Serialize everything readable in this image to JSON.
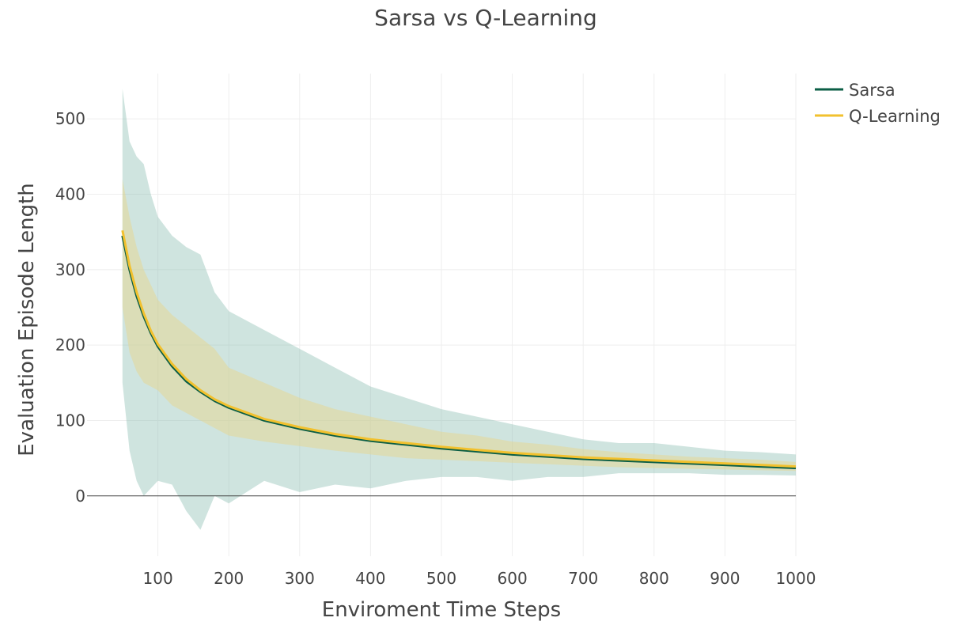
{
  "chart_data": {
    "type": "line",
    "title": "Sarsa vs Q-Learning",
    "xlabel": "Enviroment Time Steps",
    "ylabel": "Evaluation Episode Length",
    "xlim": [
      0,
      1000
    ],
    "ylim": [
      -80,
      560
    ],
    "x_ticks": [
      100,
      200,
      300,
      400,
      500,
      600,
      700,
      800,
      900,
      1000
    ],
    "y_ticks": [
      0,
      100,
      200,
      300,
      400,
      500
    ],
    "grid": true,
    "legend": "top-right",
    "x": [
      50,
      60,
      70,
      80,
      90,
      100,
      120,
      140,
      160,
      180,
      200,
      250,
      300,
      350,
      400,
      450,
      500,
      550,
      600,
      650,
      700,
      750,
      800,
      850,
      900,
      950,
      1000
    ],
    "series": [
      {
        "name": "Sarsa",
        "color": "#0b5e46",
        "values": [
          345,
          300,
          265,
          238,
          216,
          198,
          172,
          152,
          138,
          126,
          117,
          100,
          89,
          80,
          73,
          68,
          63,
          59,
          55,
          52,
          49,
          47,
          45,
          43,
          41,
          39,
          37
        ],
        "band_upper": [
          540,
          470,
          450,
          440,
          400,
          370,
          345,
          330,
          320,
          270,
          245,
          220,
          195,
          170,
          145,
          130,
          115,
          105,
          95,
          85,
          75,
          70,
          70,
          65,
          60,
          58,
          55
        ],
        "band_lower": [
          150,
          60,
          20,
          0,
          10,
          20,
          15,
          -20,
          -45,
          0,
          -10,
          20,
          5,
          15,
          10,
          20,
          25,
          25,
          20,
          25,
          25,
          30,
          30,
          30,
          28,
          28,
          27
        ],
        "band_color": "#86bcaf"
      },
      {
        "name": "Q-Learning",
        "color": "#f2c12e",
        "values": [
          352,
          305,
          270,
          242,
          219,
          201,
          175,
          155,
          140,
          128,
          119,
          102,
          91,
          82,
          75,
          70,
          65,
          61,
          57,
          54,
          51,
          49,
          47,
          45,
          43,
          41,
          39
        ],
        "band_upper": [
          420,
          370,
          330,
          300,
          280,
          260,
          240,
          225,
          210,
          195,
          170,
          150,
          130,
          115,
          105,
          95,
          85,
          80,
          72,
          68,
          62,
          58,
          55,
          52,
          50,
          48,
          45
        ],
        "band_lower": [
          250,
          190,
          165,
          150,
          145,
          140,
          120,
          110,
          100,
          90,
          80,
          72,
          66,
          60,
          55,
          50,
          48,
          46,
          44,
          42,
          40,
          38,
          37,
          36,
          35,
          34,
          33
        ],
        "band_color": "#e8d587"
      }
    ]
  }
}
